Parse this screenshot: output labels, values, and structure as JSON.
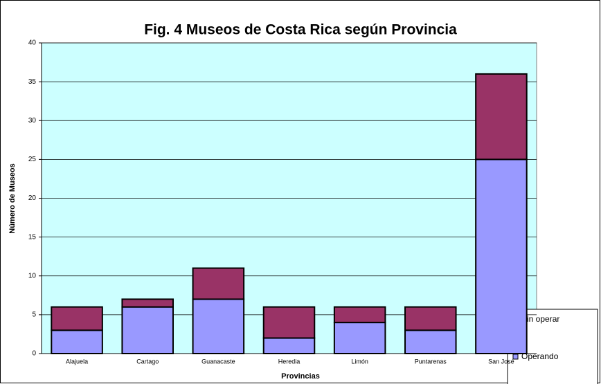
{
  "chart_data": {
    "type": "stacked_bar",
    "title": "Fig. 4 Museos de Costa Rica según Provincia",
    "x_label": "Provincias",
    "y_label": "Número de Museos",
    "categories": [
      "Alajuela",
      "Cartago",
      "Guanacaste",
      "Heredia",
      "Limón",
      "Puntarenas",
      "San José"
    ],
    "series": [
      {
        "name": "Operando",
        "color": "#9999ff",
        "values": [
          3,
          6,
          7,
          2,
          4,
          3,
          25
        ]
      },
      {
        "name": "Sin operar",
        "color": "#993366",
        "values": [
          3,
          1,
          4,
          4,
          2,
          3,
          11
        ]
      }
    ],
    "ylim": [
      0,
      40
    ],
    "yticks": [
      0,
      5,
      10,
      15,
      20,
      25,
      30,
      35,
      40
    ],
    "grid": true
  }
}
